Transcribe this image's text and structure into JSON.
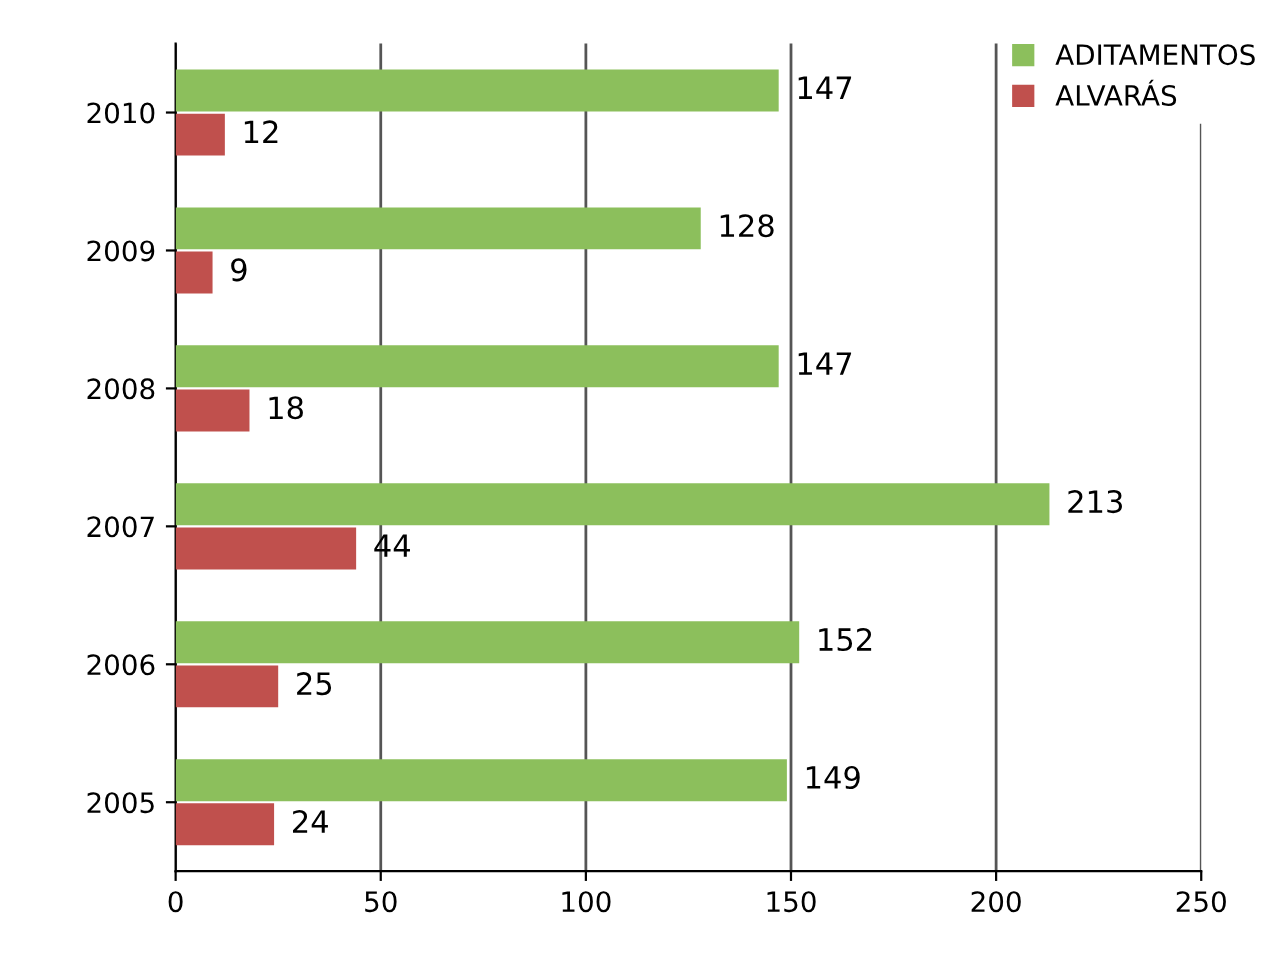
{
  "chart_data": {
    "type": "bar",
    "orientation": "horizontal",
    "categories": [
      "2010",
      "2009",
      "2008",
      "2007",
      "2006",
      "2005"
    ],
    "series": [
      {
        "name": "ADITAMENTOS",
        "color": "#8cbf5c",
        "values": [
          147,
          128,
          147,
          213,
          152,
          149
        ]
      },
      {
        "name": "ALVARÁS",
        "color": "#c0504d",
        "values": [
          12,
          9,
          18,
          44,
          25,
          24
        ]
      }
    ],
    "xlim": [
      0,
      250
    ],
    "xticks": [
      0,
      50,
      100,
      150,
      200,
      250
    ],
    "grid": "x",
    "legend": "top right",
    "data_labels": true
  }
}
